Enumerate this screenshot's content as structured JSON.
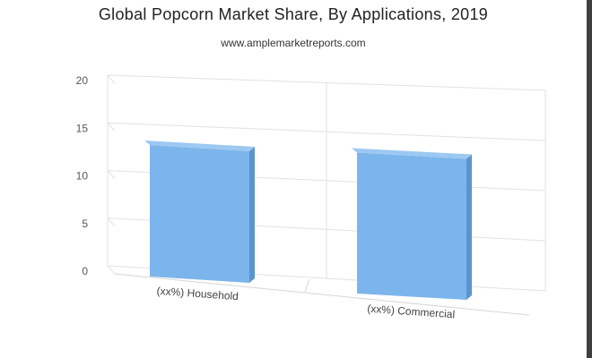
{
  "header": {
    "title": "Global Popcorn Market Share, By Applications, 2019",
    "source": "www.amplemarketreports.com"
  },
  "chart_data": {
    "type": "bar",
    "title": "Global Popcorn Market Share, By Applications, 2019",
    "subtitle": "www.amplemarketreports.com",
    "categories": [
      "(xx%) Household",
      "(xx%) Commercial"
    ],
    "values": [
      14,
      15
    ],
    "ylim": [
      0,
      20
    ],
    "yticks": [
      0,
      5,
      10,
      15,
      20
    ],
    "grid": true,
    "legend": "none",
    "colors": {
      "bar_front": "#7cb5ec",
      "bar_side": "#5a95cf",
      "bar_top": "#9cc8f1",
      "grid": "#e2e2e2"
    }
  }
}
